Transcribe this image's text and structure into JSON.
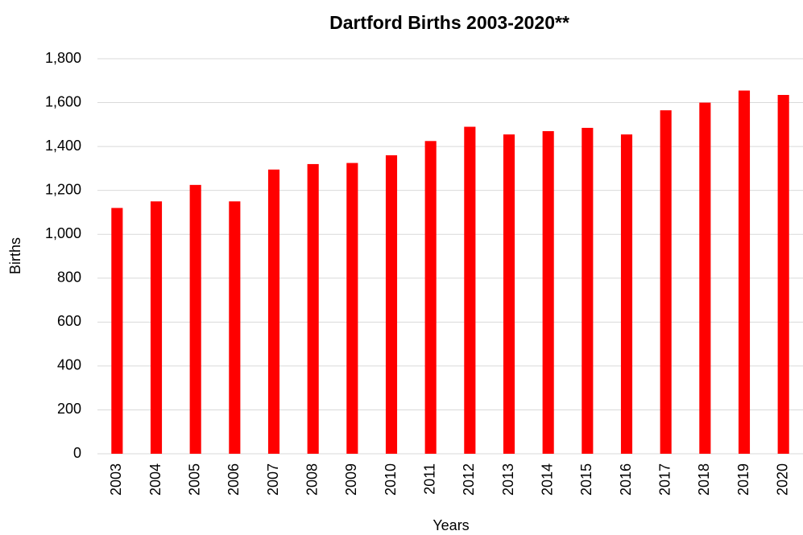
{
  "chart_data": {
    "type": "bar",
    "title": "Dartford Births 2003-2020**",
    "x_label": "Years",
    "y_label": "Births",
    "categories": [
      "2003",
      "2004",
      "2005",
      "2006",
      "2007",
      "2008",
      "2009",
      "2010",
      "2011",
      "2012",
      "2013",
      "2014",
      "2015",
      "2016",
      "2017",
      "2018",
      "2019",
      "2020"
    ],
    "values": [
      1120,
      1150,
      1225,
      1150,
      1295,
      1320,
      1325,
      1360,
      1425,
      1490,
      1455,
      1470,
      1485,
      1455,
      1565,
      1600,
      1655,
      1635
    ],
    "color": "#ff0000",
    "ylim": [
      0,
      1800
    ],
    "yticks": [
      0,
      200,
      400,
      600,
      800,
      {
        "value": 1000,
        "label": "1,000"
      },
      {
        "value": 1200,
        "label": "1,200"
      },
      {
        "value": 1400,
        "label": "1,400"
      },
      {
        "value": 1600,
        "label": "1,600"
      },
      {
        "value": 1800,
        "label": "1,800"
      }
    ],
    "grid": true
  }
}
